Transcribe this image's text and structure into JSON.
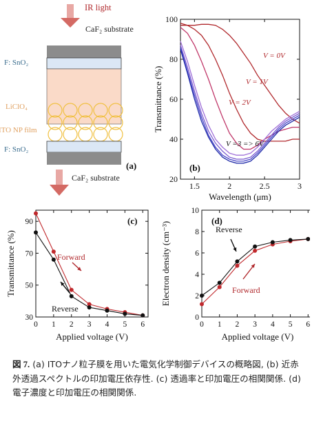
{
  "figure": {
    "number": "図 7.",
    "caption": "(a) ITOナノ粒子膜を用いた電気化学制御デバイスの概略図, (b) 近赤外透過スペクトルの印加電圧依存性. (c) 透過率と印加電圧の相関関係. (d) 電子濃度と印加電圧の相関関係."
  },
  "panel_a": {
    "tag": "(a)",
    "ir_light": "IR light",
    "substrate_top": "CaF₂ substrate",
    "substrate_bottom": "CaF₂ substrate",
    "fto_top": "F: SnO₂",
    "fto_bottom": "F: SnO₂",
    "electrolyte": "LiClO₄",
    "np_film": "ITO NP film",
    "colors": {
      "arrow": "#c0504d",
      "glass": "#8c8c8c",
      "fto": "#dbe7f5",
      "electrolyte": "#fadac8",
      "np": "#f2cf66",
      "label_fto": "#3a6d8e",
      "label_li": "#e0a060"
    }
  },
  "chart_data": [
    {
      "panel": "b",
      "type": "line",
      "tag": "(b)",
      "xlabel": "Wavelength (μm)",
      "ylabel": "Transmittance (%)",
      "xlim": [
        1.3,
        3.0
      ],
      "ylim": [
        20,
        100
      ],
      "xticks": [
        "1.5",
        "2",
        "2.5",
        "3"
      ],
      "yticks": [
        "20",
        "40",
        "60",
        "80",
        "100"
      ],
      "annotations": [
        "V = 0V",
        "V = 1V",
        "V = 2V",
        "V =3 => 6V"
      ],
      "series": [
        {
          "x": [
            1.3,
            1.4,
            1.5,
            1.6,
            1.7,
            1.8,
            1.9,
            2.0,
            2.1,
            2.2,
            2.3,
            2.4,
            2.5,
            2.6,
            2.7,
            2.8,
            2.9,
            3.0
          ],
          "y": [
            97,
            97,
            97,
            97.5,
            97.5,
            97,
            95,
            92,
            88,
            83,
            78,
            72,
            67,
            62,
            57,
            53,
            50,
            48
          ],
          "color": "#b0282c"
        },
        {
          "x": [
            1.3,
            1.4,
            1.5,
            1.6,
            1.7,
            1.8,
            1.9,
            2.0,
            2.1,
            2.2,
            2.3,
            2.4,
            2.5,
            2.6,
            2.7,
            2.8,
            2.9,
            3.0
          ],
          "y": [
            98,
            97,
            95,
            92,
            87,
            80,
            72,
            63,
            55,
            48,
            43,
            40,
            39,
            39,
            39,
            39,
            40,
            40
          ],
          "color": "#b0282c"
        },
        {
          "x": [
            1.3,
            1.4,
            1.5,
            1.6,
            1.7,
            1.8,
            1.9,
            2.0,
            2.1,
            2.2,
            2.3,
            2.4,
            2.5,
            2.6,
            2.7,
            2.8,
            2.9,
            3.0
          ],
          "y": [
            96,
            93,
            87,
            79,
            70,
            60,
            51,
            43,
            38,
            35,
            35,
            37,
            40,
            42,
            44,
            45,
            46,
            46
          ],
          "color": "#c0386a"
        },
        {
          "x": [
            1.3,
            1.4,
            1.5,
            1.6,
            1.7,
            1.8,
            1.9,
            2.0,
            2.1,
            2.2,
            2.3,
            2.4,
            2.5,
            2.6,
            2.7,
            2.8,
            2.9,
            3.0
          ],
          "y": [
            89,
            79,
            67,
            56,
            47,
            40,
            36,
            33,
            32,
            32,
            33,
            36,
            40,
            44,
            47,
            50,
            52,
            54
          ],
          "color": "#a070d8"
        },
        {
          "x": [
            1.3,
            1.4,
            1.5,
            1.6,
            1.7,
            1.8,
            1.9,
            2.0,
            2.1,
            2.2,
            2.3,
            2.4,
            2.5,
            2.6,
            2.7,
            2.8,
            2.9,
            3.0
          ],
          "y": [
            87,
            76,
            64,
            53,
            44,
            38,
            34,
            31,
            30,
            30,
            31,
            34,
            38,
            42,
            46,
            49,
            51,
            53
          ],
          "color": "#7a5ad0"
        },
        {
          "x": [
            1.3,
            1.4,
            1.5,
            1.6,
            1.7,
            1.8,
            1.9,
            2.0,
            2.1,
            2.2,
            2.3,
            2.4,
            2.5,
            2.6,
            2.7,
            2.8,
            2.9,
            3.0
          ],
          "y": [
            86,
            74,
            62,
            51,
            42,
            36,
            32,
            30,
            29,
            29,
            30,
            33,
            37,
            41,
            45,
            48,
            50,
            52
          ],
          "color": "#4a48c8"
        },
        {
          "x": [
            1.3,
            1.4,
            1.5,
            1.6,
            1.7,
            1.8,
            1.9,
            2.0,
            2.1,
            2.2,
            2.3,
            2.4,
            2.5,
            2.6,
            2.7,
            2.8,
            2.9,
            3.0
          ],
          "y": [
            85,
            73,
            60,
            49,
            41,
            35,
            31,
            29,
            28,
            28,
            29,
            32,
            36,
            40,
            44,
            47,
            49,
            51
          ],
          "color": "#1e2aa8"
        }
      ]
    },
    {
      "panel": "c",
      "type": "line",
      "tag": "(c)",
      "xlabel": "Applied voltage (V)",
      "ylabel": "Transmittance (%)",
      "xlim": [
        0,
        6.3
      ],
      "ylim": [
        30,
        97
      ],
      "xticks": [
        "0",
        "1",
        "2",
        "3",
        "4",
        "5",
        "6"
      ],
      "yticks": [
        "30",
        "50",
        "70",
        "90"
      ],
      "annotations": [
        "Forward",
        "Reverse"
      ],
      "series": [
        {
          "name": "Forward",
          "x": [
            0,
            1,
            2,
            3,
            4,
            5,
            6
          ],
          "y": [
            95,
            71,
            47,
            38,
            35,
            33,
            31
          ],
          "color": "#c0282c"
        },
        {
          "name": "Reverse",
          "x": [
            0,
            1,
            2,
            3,
            4,
            5,
            6
          ],
          "y": [
            83,
            66,
            43,
            36,
            34,
            32,
            31
          ],
          "color": "#111111"
        }
      ]
    },
    {
      "panel": "d",
      "type": "line",
      "tag": "(d)",
      "xlabel": "Applied voltage (V)",
      "ylabel": "Electron density (cm⁻³)",
      "xlim": [
        0,
        6.3
      ],
      "ylim": [
        0,
        10
      ],
      "xticks": [
        "0",
        "1",
        "2",
        "3",
        "4",
        "5",
        "6"
      ],
      "yticks": [
        "0",
        "2",
        "4",
        "6",
        "8",
        "10"
      ],
      "annotations": [
        "Reverse",
        "Forward"
      ],
      "series": [
        {
          "name": "Forward",
          "x": [
            0,
            1,
            2,
            3,
            4,
            5,
            6
          ],
          "y": [
            1.2,
            2.8,
            4.8,
            6.2,
            6.8,
            7.1,
            7.3
          ],
          "color": "#c0282c"
        },
        {
          "name": "Reverse",
          "x": [
            0,
            1,
            2,
            3,
            4,
            5,
            6
          ],
          "y": [
            2.0,
            3.2,
            5.2,
            6.6,
            7.0,
            7.2,
            7.3
          ],
          "color": "#111111"
        }
      ]
    }
  ]
}
